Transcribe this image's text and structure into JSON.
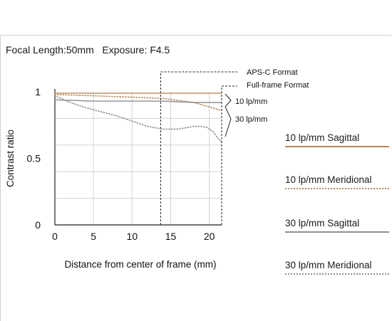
{
  "title": {
    "focal_label": "Focal Length:50mm",
    "exposure_label": "Exposure: F4.5"
  },
  "legend": [
    {
      "label": "10 lp/mm Sagittal",
      "color": "#b8875a",
      "style": "solid"
    },
    {
      "label": "10 lp/mm Meridional",
      "color": "#b8875a",
      "style": "dotted"
    },
    {
      "label": "30 lp/mm Sagittal",
      "color": "#8f8f8f",
      "style": "solid"
    },
    {
      "label": "30 lp/mm Meridional",
      "color": "#8f8f8f",
      "style": "dotted"
    }
  ],
  "chart_data": {
    "type": "line",
    "xlabel": "Distance from center of frame (mm)",
    "ylabel": "Contrast ratio",
    "xlim": [
      0,
      21.6
    ],
    "ylim": [
      0,
      1
    ],
    "xticks": [
      0,
      5,
      10,
      15,
      20
    ],
    "yticks": [
      {
        "value": 0,
        "label": "0"
      },
      {
        "value": 0.5,
        "label": "0.5"
      },
      {
        "value": 1,
        "label": "1"
      }
    ],
    "grid": true,
    "series": [
      {
        "name": "10 lp/mm Sagittal",
        "color": "#b8875a",
        "style": "solid",
        "x": [
          0,
          21.6
        ],
        "y": [
          0.99,
          0.99
        ]
      },
      {
        "name": "10 lp/mm Meridional",
        "color": "#b8875a",
        "style": "dotted",
        "x": [
          0,
          5,
          10,
          14,
          18,
          21.6
        ],
        "y": [
          0.98,
          0.97,
          0.96,
          0.95,
          0.92,
          0.86
        ]
      },
      {
        "name": "30 lp/mm Sagittal",
        "color": "#8f8f8f",
        "style": "solid",
        "x": [
          0,
          5,
          10,
          14,
          18,
          21.6
        ],
        "y": [
          0.94,
          0.93,
          0.93,
          0.93,
          0.92,
          0.92
        ]
      },
      {
        "name": "30 lp/mm Meridional",
        "color": "#8f8f8f",
        "style": "dotted",
        "x": [
          0,
          2,
          4,
          6,
          8,
          10,
          12,
          14,
          16,
          17,
          18,
          19,
          19.8,
          20.5,
          21,
          21.6
        ],
        "y": [
          0.97,
          0.92,
          0.88,
          0.85,
          0.82,
          0.78,
          0.74,
          0.72,
          0.72,
          0.73,
          0.74,
          0.74,
          0.73,
          0.7,
          0.66,
          0.62
        ]
      }
    ],
    "annotations": {
      "aps_c_label": "APS-C Format",
      "aps_c_x": 13.7,
      "full_frame_label": "Full-frame Format",
      "full_frame_x": 21.6,
      "brace_10_label": "10 lp/mm",
      "brace_30_label": "30 lp/mm"
    }
  }
}
